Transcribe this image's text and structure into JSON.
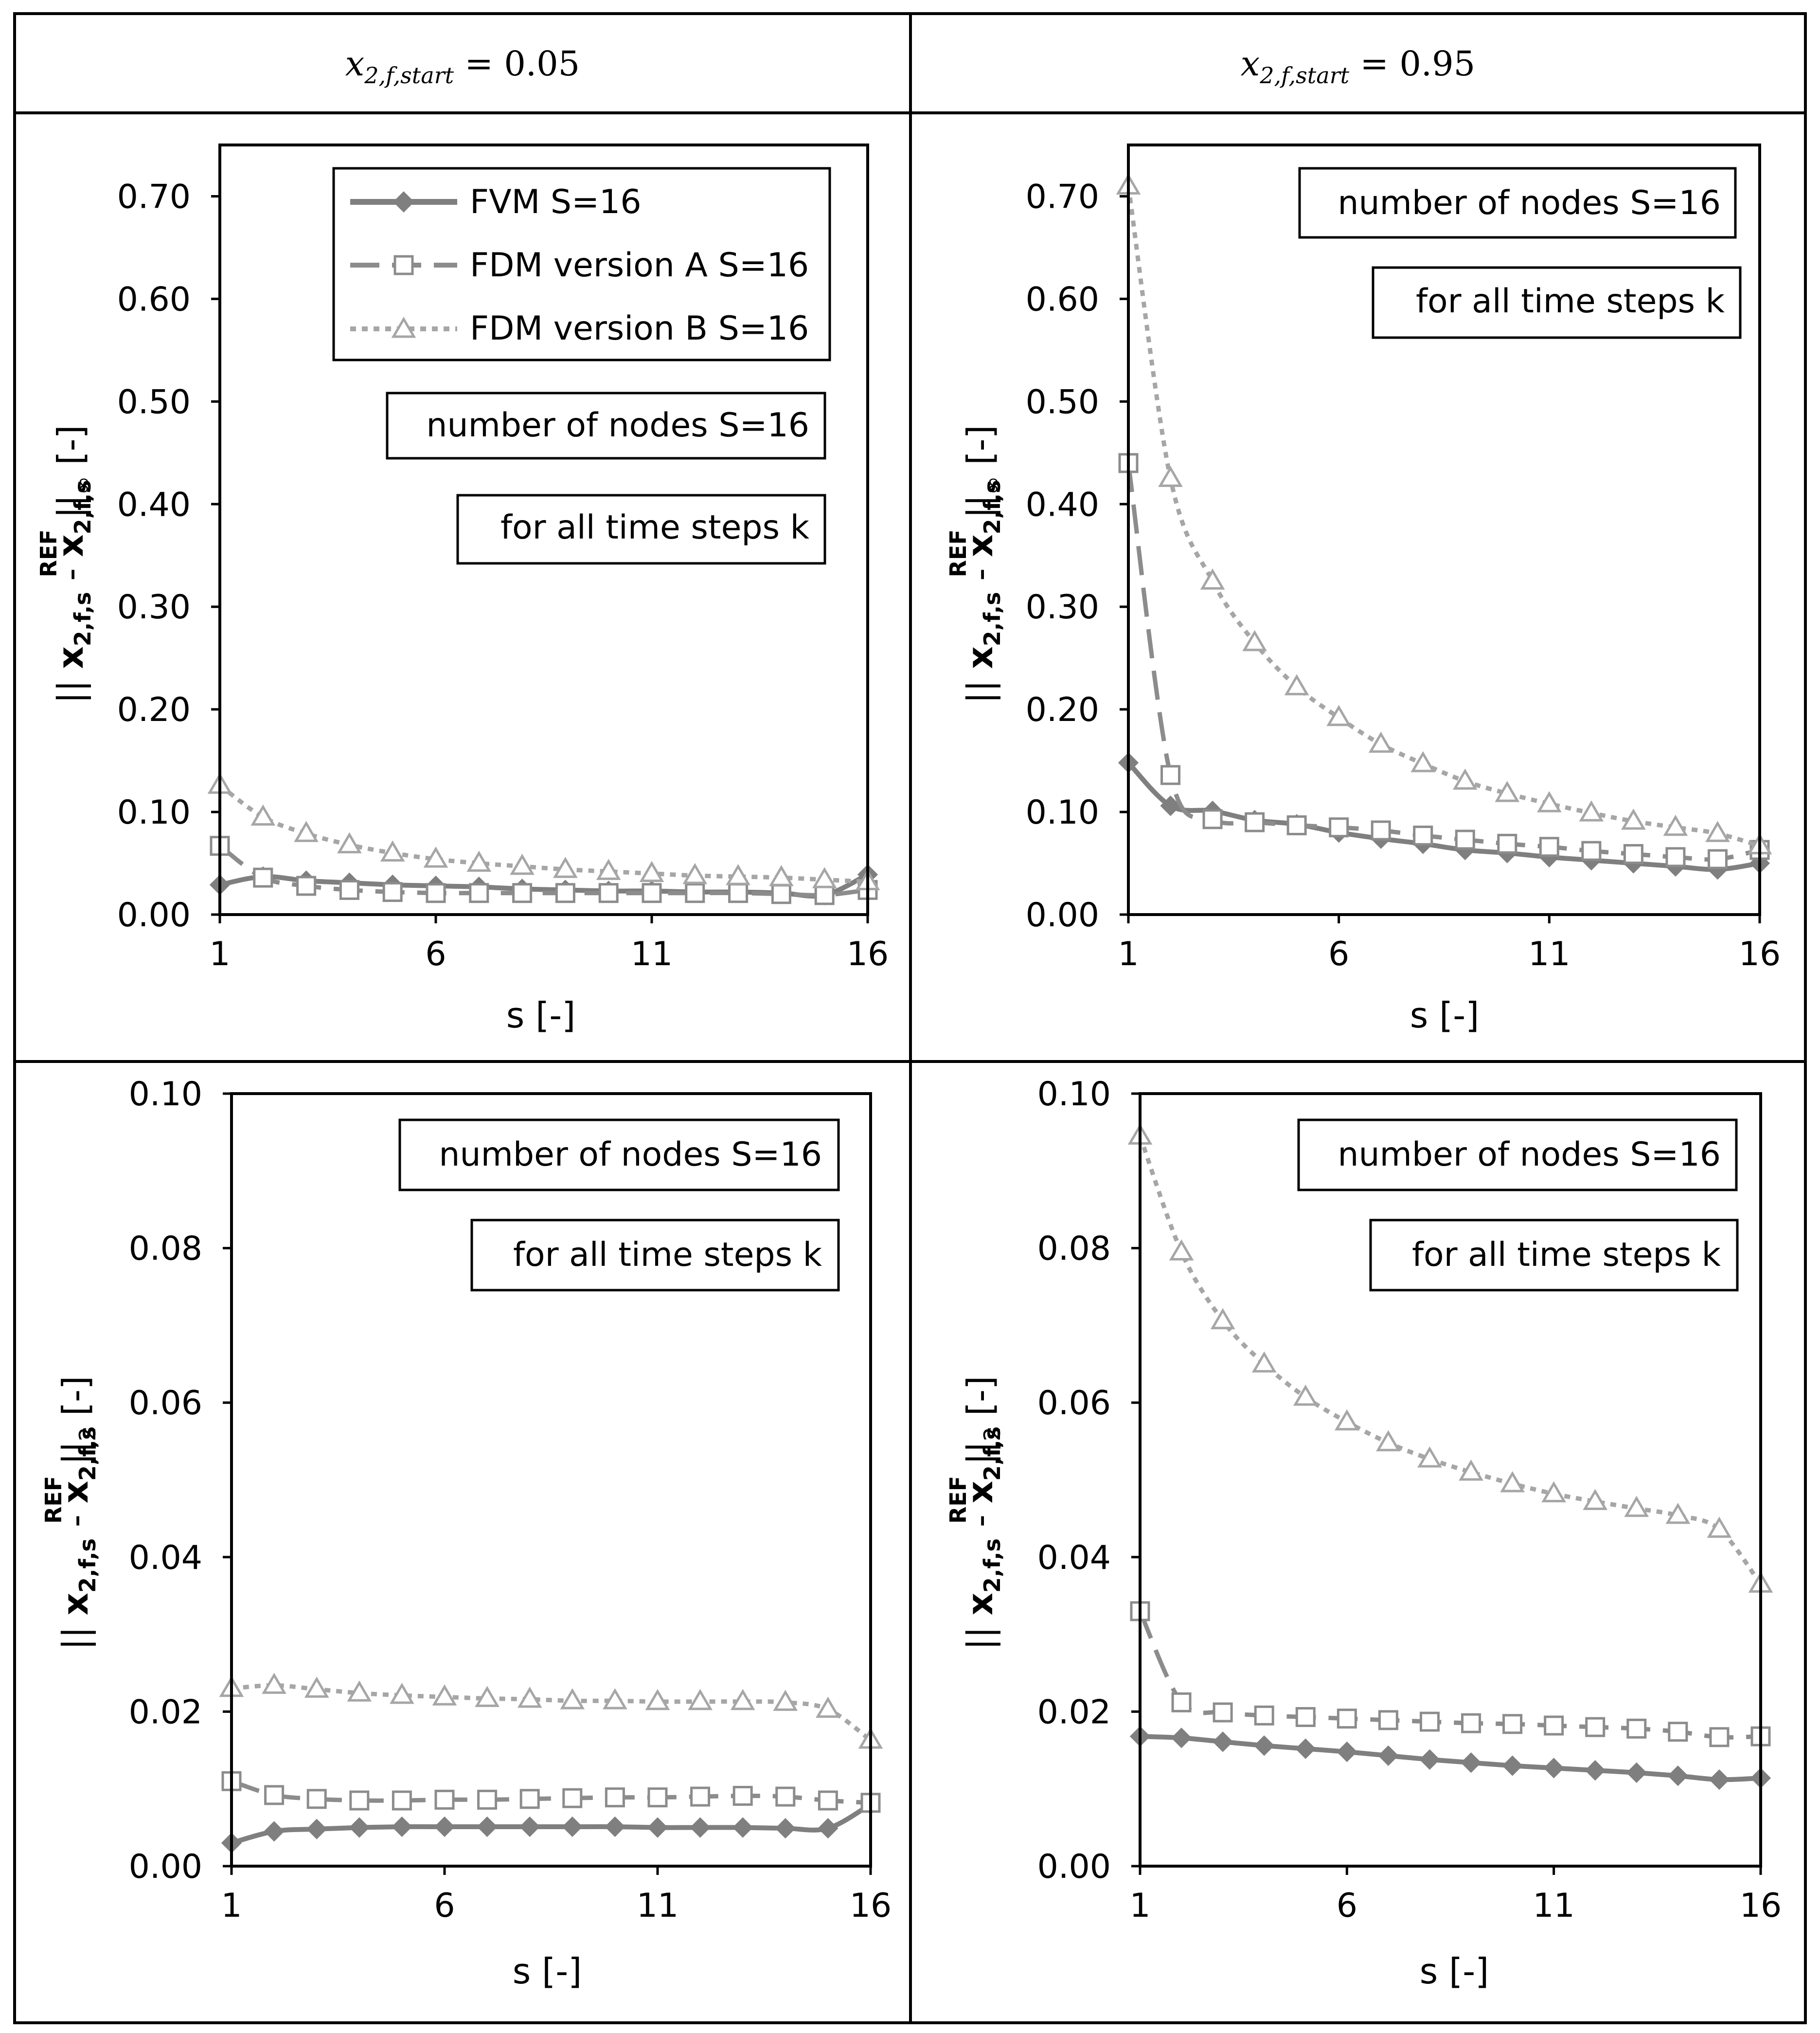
{
  "headers": {
    "left": {
      "main": "x",
      "sub": "2,f,start",
      "rest": " = 0.05"
    },
    "right": {
      "main": "x",
      "sub": "2,f,start",
      "rest": " = 0.95"
    }
  },
  "legend": {
    "fvm": "FVM S=16",
    "fdm_a": "FDM version A S=16",
    "fdm_b": "FDM version B S=16"
  },
  "notes": {
    "nodes": "number of nodes S=16",
    "steps": "for all time steps k"
  },
  "ylabels": {
    "inf": {
      "pre": "|| ",
      "a": "x",
      "asub": "2,f,s",
      "mid": " - ",
      "b": "x",
      "bsub": "2,f,s",
      "bsup": "REF",
      "post": " ||",
      "norm": "∞",
      "unit": " [-]"
    },
    "two": {
      "pre": "|| ",
      "a": "x",
      "asub": "2,f,s",
      "mid": " - ",
      "b": "x",
      "bsub": "2,f,s",
      "bsup": "REF",
      "post": " ||",
      "norm": "2",
      "unit": " [-]"
    }
  },
  "colors": {
    "fvm": "#7f7f7f",
    "fdm_a": "#8c8c8c",
    "fdm_b": "#a6a6a6",
    "frame": "#000000"
  },
  "chart_data": [
    {
      "type": "line",
      "panel": "top-left",
      "title": "x_{2,f,start} = 0.05",
      "xlabel": "s [-]",
      "ylabel": "|| x2,f,s - x2,f,s REF ||∞ [-]",
      "xlim": [
        1,
        16
      ],
      "ylim": [
        0,
        0.75
      ],
      "yticks": [
        "0.00",
        "0.10",
        "0.20",
        "0.30",
        "0.40",
        "0.50",
        "0.60",
        "0.70"
      ],
      "xticks": [
        "1",
        "6",
        "11",
        "16"
      ],
      "legend": [
        "FVM S=16",
        "FDM version A S=16",
        "FDM version B S=16"
      ],
      "x": [
        1,
        2,
        3,
        4,
        5,
        6,
        7,
        8,
        9,
        10,
        11,
        12,
        13,
        14,
        15,
        16
      ],
      "series": [
        {
          "name": "FVM S=16",
          "values": [
            0.029,
            0.037,
            0.033,
            0.031,
            0.029,
            0.028,
            0.027,
            0.025,
            0.024,
            0.023,
            0.023,
            0.022,
            0.022,
            0.021,
            0.019,
            0.039
          ]
        },
        {
          "name": "FDM version A S=16",
          "values": [
            0.067,
            0.036,
            0.028,
            0.024,
            0.022,
            0.021,
            0.021,
            0.021,
            0.021,
            0.021,
            0.021,
            0.021,
            0.021,
            0.02,
            0.019,
            0.024
          ]
        },
        {
          "name": "FDM version B S=16",
          "values": [
            0.126,
            0.095,
            0.079,
            0.068,
            0.06,
            0.054,
            0.05,
            0.047,
            0.044,
            0.042,
            0.04,
            0.038,
            0.037,
            0.036,
            0.034,
            0.032
          ]
        }
      ]
    },
    {
      "type": "line",
      "panel": "top-right",
      "title": "x_{2,f,start} = 0.95",
      "xlabel": "s [-]",
      "ylabel": "|| x2,f,s - x2,f,s REF ||∞ [-]",
      "xlim": [
        1,
        16
      ],
      "ylim": [
        0,
        0.75
      ],
      "yticks": [
        "0.00",
        "0.10",
        "0.20",
        "0.30",
        "0.40",
        "0.50",
        "0.60",
        "0.70"
      ],
      "xticks": [
        "1",
        "6",
        "11",
        "16"
      ],
      "x": [
        1,
        2,
        3,
        4,
        5,
        6,
        7,
        8,
        9,
        10,
        11,
        12,
        13,
        14,
        15,
        16
      ],
      "series": [
        {
          "name": "FVM S=16",
          "values": [
            0.148,
            0.106,
            0.101,
            0.092,
            0.088,
            0.08,
            0.074,
            0.069,
            0.063,
            0.06,
            0.056,
            0.053,
            0.05,
            0.047,
            0.044,
            0.05
          ]
        },
        {
          "name": "FDM version A S=16",
          "values": [
            0.44,
            0.136,
            0.093,
            0.09,
            0.087,
            0.085,
            0.082,
            0.077,
            0.073,
            0.069,
            0.066,
            0.062,
            0.059,
            0.056,
            0.054,
            0.063
          ]
        },
        {
          "name": "FDM version B S=16",
          "values": [
            0.71,
            0.425,
            0.325,
            0.265,
            0.222,
            0.192,
            0.166,
            0.147,
            0.13,
            0.118,
            0.108,
            0.099,
            0.091,
            0.085,
            0.079,
            0.067
          ]
        }
      ]
    },
    {
      "type": "line",
      "panel": "bottom-left",
      "xlabel": "s [-]",
      "ylabel": "|| x2,f,s - x2,f,s REF ||2 [-]",
      "xlim": [
        1,
        16
      ],
      "ylim": [
        0,
        0.1
      ],
      "yticks": [
        "0.00",
        "0.02",
        "0.04",
        "0.06",
        "0.08",
        "0.10"
      ],
      "xticks": [
        "1",
        "6",
        "11",
        "16"
      ],
      "x": [
        1,
        2,
        3,
        4,
        5,
        6,
        7,
        8,
        9,
        10,
        11,
        12,
        13,
        14,
        15,
        16
      ],
      "series": [
        {
          "name": "FVM S=16",
          "values": [
            0.003,
            0.0045,
            0.0048,
            0.005,
            0.0051,
            0.0051,
            0.0051,
            0.0051,
            0.0051,
            0.0051,
            0.005,
            0.005,
            0.005,
            0.0049,
            0.0049,
            0.008
          ]
        },
        {
          "name": "FDM version A S=16",
          "values": [
            0.011,
            0.0092,
            0.0087,
            0.0085,
            0.0085,
            0.0086,
            0.0086,
            0.0087,
            0.0088,
            0.0089,
            0.0089,
            0.009,
            0.0091,
            0.009,
            0.0085,
            0.0082
          ]
        },
        {
          "name": "FDM version B S=16",
          "values": [
            0.023,
            0.0234,
            0.0229,
            0.0224,
            0.0221,
            0.0219,
            0.0217,
            0.0216,
            0.0214,
            0.0214,
            0.0213,
            0.0213,
            0.0213,
            0.0212,
            0.0203,
            0.0163
          ]
        }
      ]
    },
    {
      "type": "line",
      "panel": "bottom-right",
      "xlabel": "s [-]",
      "ylabel": "|| x2,f,s - x2,f,s REF ||2 [-]",
      "xlim": [
        1,
        16
      ],
      "ylim": [
        0,
        0.1
      ],
      "yticks": [
        "0.00",
        "0.02",
        "0.04",
        "0.06",
        "0.08",
        "0.10"
      ],
      "xticks": [
        "1",
        "6",
        "11",
        "16"
      ],
      "x": [
        1,
        2,
        3,
        4,
        5,
        6,
        7,
        8,
        9,
        10,
        11,
        12,
        13,
        14,
        15,
        16
      ],
      "series": [
        {
          "name": "FVM S=16",
          "values": [
            0.0168,
            0.0166,
            0.0161,
            0.0156,
            0.0152,
            0.0148,
            0.0143,
            0.0138,
            0.0134,
            0.013,
            0.0127,
            0.0124,
            0.0121,
            0.0117,
            0.0112,
            0.0114
          ]
        },
        {
          "name": "FDM version A S=16",
          "values": [
            0.033,
            0.0212,
            0.0199,
            0.0195,
            0.0193,
            0.0191,
            0.0189,
            0.0187,
            0.0185,
            0.0184,
            0.0182,
            0.018,
            0.0178,
            0.0174,
            0.0167,
            0.0168
          ]
        },
        {
          "name": "FDM version B S=16",
          "values": [
            0.0945,
            0.0795,
            0.0706,
            0.065,
            0.0607,
            0.0575,
            0.0548,
            0.0527,
            0.051,
            0.0495,
            0.0482,
            0.0472,
            0.0463,
            0.0454,
            0.0436,
            0.0365
          ]
        }
      ]
    }
  ]
}
